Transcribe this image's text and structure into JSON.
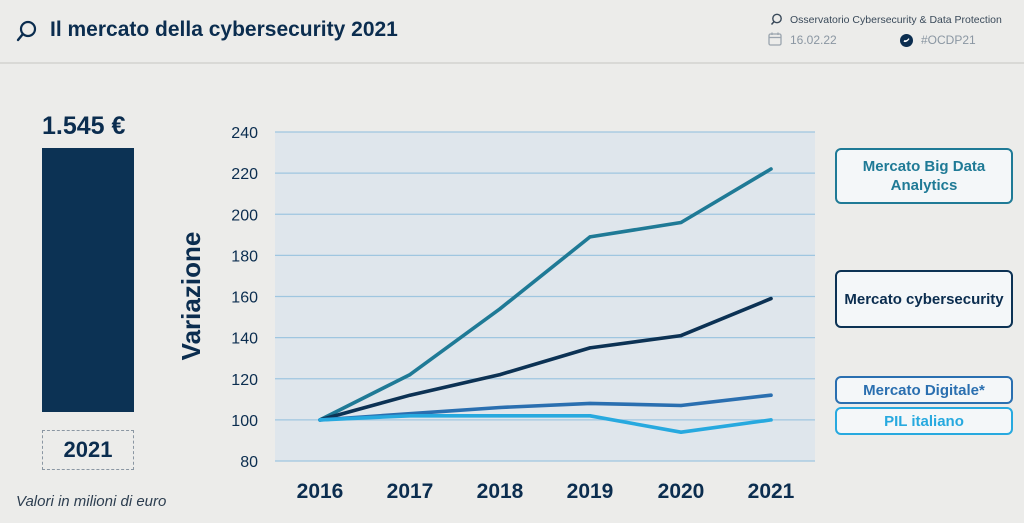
{
  "header": {
    "title": "Il mercato della cybersecurity 2021",
    "org": "Osservatorio Cybersecurity & Data Protection",
    "date": "16.02.22",
    "hashtag": "#OCDP21"
  },
  "summary": {
    "value": "1.545 €",
    "year": "2021",
    "unit_note": "Valori in milioni di euro",
    "bar_color": "#0c3254"
  },
  "chart_data": {
    "type": "line",
    "ylabel": "Variazione",
    "xlabel": "",
    "x": [
      "2016",
      "2017",
      "2018",
      "2019",
      "2020",
      "2021"
    ],
    "ylim": [
      80,
      240
    ],
    "yticks": [
      80,
      100,
      120,
      140,
      160,
      180,
      200,
      220,
      240
    ],
    "grid": true,
    "legend_position": "right",
    "series": [
      {
        "name": "Mercato Big Data Analytics",
        "values": [
          100,
          122,
          154,
          189,
          196,
          222
        ],
        "color": "#1f7a96"
      },
      {
        "name": "Mercato cybersecurity",
        "values": [
          100,
          112,
          122,
          135,
          141,
          159
        ],
        "color": "#0c3254"
      },
      {
        "name": "Mercato Digitale*",
        "values": [
          100,
          103,
          106,
          108,
          107,
          112
        ],
        "color": "#2a6fb0"
      },
      {
        "name": "PIL italiano",
        "values": [
          100,
          102,
          102,
          102,
          94,
          100
        ],
        "color": "#27a9df"
      }
    ]
  }
}
